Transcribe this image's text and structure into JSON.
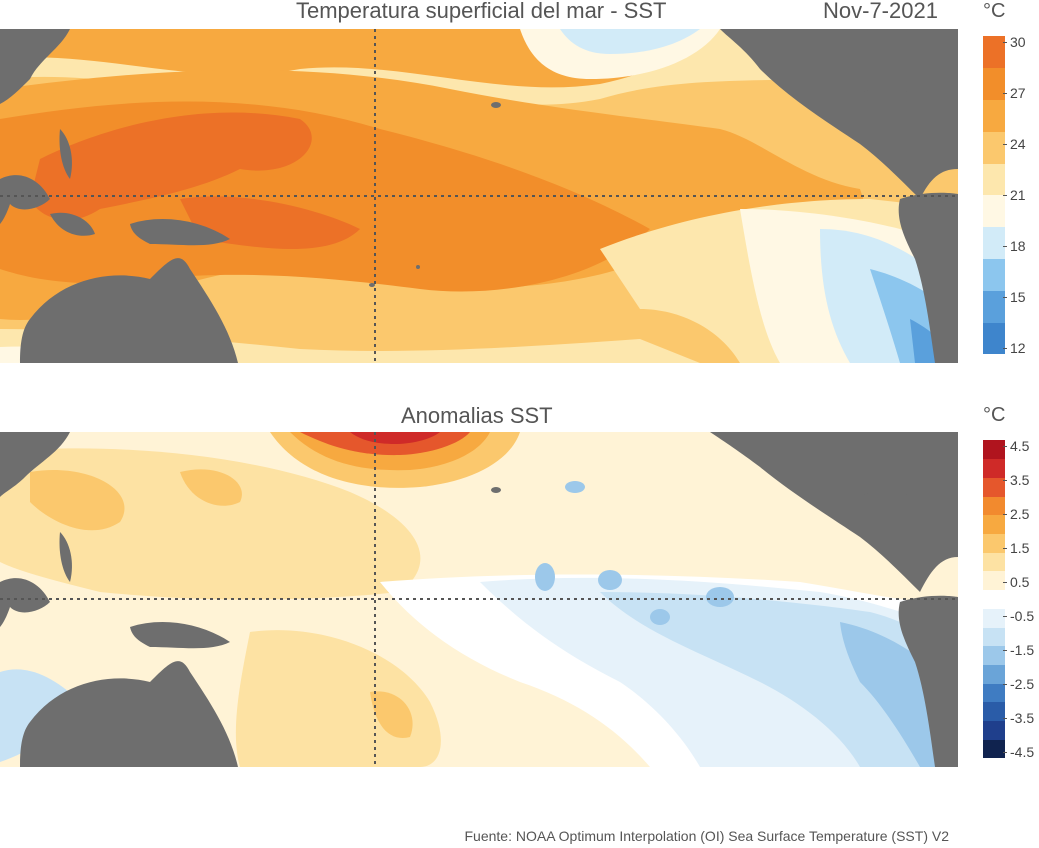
{
  "sst_panel": {
    "title": "Temperatura superficial del mar - SST",
    "date": "Nov-7-2021",
    "unit": "°C",
    "colorbar": {
      "colors": [
        "#3e85cc",
        "#5aa0dc",
        "#8cc6ee",
        "#d2ebf8",
        "#fff8e4",
        "#fde7ad",
        "#fbc86d",
        "#f7a940",
        "#f28e2a",
        "#ec7127"
      ],
      "ticks": [
        "30",
        "27",
        "24",
        "21",
        "18",
        "15",
        "12"
      ]
    }
  },
  "anomaly_panel": {
    "title": "Anomalias SST",
    "unit": "°C",
    "colorbar": {
      "colors": [
        "#10234f",
        "#1f3f8c",
        "#2a5ca8",
        "#3f7cc2",
        "#6aa4d8",
        "#9cc8ea",
        "#c7e2f4",
        "#e6f2fa",
        "#ffffff",
        "#fff3d6",
        "#fde2a3",
        "#fbc86d",
        "#f7a940",
        "#f28a2e",
        "#e5572c",
        "#cf2a28",
        "#b0141e"
      ],
      "ticks": [
        "4.5",
        "3.5",
        "2.5",
        "1.5",
        "0.5",
        "-0.5",
        "-1.5",
        "-2.5",
        "-3.5",
        "-4.5"
      ]
    }
  },
  "source": "Fuente: NOAA Optimum Interpolation (OI) Sea Surface Temperature (SST) V2"
}
